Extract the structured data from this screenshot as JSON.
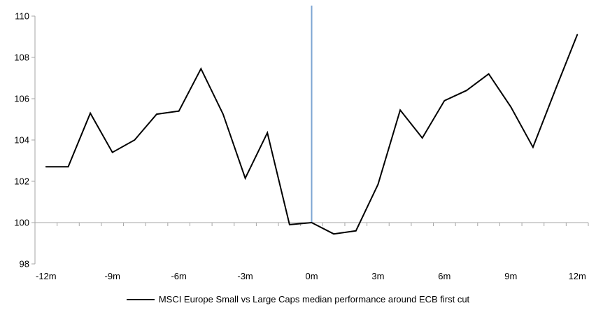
{
  "chart_data": {
    "type": "line",
    "legend": "MSCI Europe Small vs Large Caps median performance around ECB first cut",
    "legend_position": "bottom-center",
    "x": [
      -12,
      -11,
      -10,
      -9,
      -8,
      -7,
      -6,
      -5,
      -4,
      -3,
      -2,
      -1,
      0,
      1,
      2,
      3,
      4,
      5,
      6,
      7,
      8,
      9,
      10,
      11,
      12
    ],
    "series": [
      {
        "name": "MSCI Europe Small vs Large Caps median performance around ECB first cut",
        "color": "#000000",
        "values": [
          102.7,
          102.7,
          105.3,
          103.4,
          104.0,
          105.25,
          105.4,
          107.45,
          105.25,
          102.15,
          104.35,
          99.9,
          100.0,
          99.45,
          99.6,
          101.85,
          105.45,
          104.1,
          105.9,
          106.4,
          107.2,
          105.6,
          103.65,
          106.4,
          109.1
        ]
      }
    ],
    "x_tick_values": [
      -12,
      -9,
      -6,
      -3,
      0,
      3,
      6,
      9,
      12
    ],
    "x_tick_labels": [
      "-12m",
      "-9m",
      "-6m",
      "-3m",
      "0m",
      "3m",
      "6m",
      "9m",
      "12m"
    ],
    "y_ticks": [
      98,
      100,
      102,
      104,
      106,
      108,
      110
    ],
    "y_tick_labels": [
      "98",
      "100",
      "102",
      "104",
      "106",
      "108",
      "110"
    ],
    "ylim": [
      98,
      110
    ],
    "xlim": [
      -12.5,
      12.5
    ],
    "axis_cross_y": 100,
    "event_line_x": 0,
    "grid": "off",
    "colors": {
      "series_line": "#000000",
      "axis": "#A6A6A6",
      "event_line": "#7CA5D2",
      "text": "#000000"
    }
  }
}
